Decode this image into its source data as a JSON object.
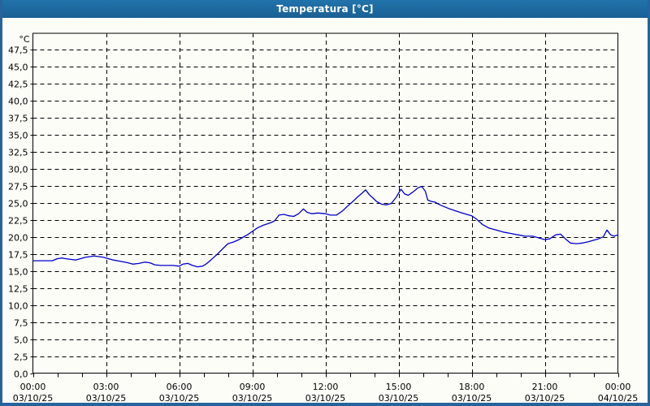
{
  "window": {
    "title": "Temperatura [°C]"
  },
  "colors": {
    "titlebar_bg": "#1d6ca6",
    "titlebar_text": "#ffffff",
    "frame_border": "#28639b",
    "content_bg": "#fdfdf8",
    "plot_border": "#000000",
    "gridline": "#000000",
    "axis_text": "#000000",
    "series_line": "#0000c8"
  },
  "chart_data": {
    "type": "line",
    "title": "Temperatura [°C]",
    "y_unit": "°C",
    "y_min": 0,
    "y_max": 47.5,
    "y_tick_step": 2.5,
    "y_tick_labels": [
      "0,0",
      "2,5",
      "5,0",
      "7,5",
      "10,0",
      "12,5",
      "15,0",
      "17,5",
      "20,0",
      "22,5",
      "25,0",
      "27,5",
      "30,0",
      "32,5",
      "35,0",
      "37,5",
      "40,0",
      "42,5",
      "45,0",
      "47,5"
    ],
    "x_hours_min": 0,
    "x_hours_max": 24,
    "x_minor_tick_every_hours": 1,
    "x_ticks": [
      {
        "hour": 0,
        "time": "00:00",
        "date": "03/10/25"
      },
      {
        "hour": 3,
        "time": "03:00",
        "date": "03/10/25"
      },
      {
        "hour": 6,
        "time": "06:00",
        "date": "03/10/25"
      },
      {
        "hour": 9,
        "time": "09:00",
        "date": "03/10/25"
      },
      {
        "hour": 12,
        "time": "12:00",
        "date": "03/10/25"
      },
      {
        "hour": 15,
        "time": "15:00",
        "date": "03/10/25"
      },
      {
        "hour": 18,
        "time": "18:00",
        "date": "03/10/25"
      },
      {
        "hour": 21,
        "time": "21:00",
        "date": "03/10/25"
      },
      {
        "hour": 24,
        "time": "00:00",
        "date": "04/10/25"
      }
    ],
    "grid": "dashed black; horizontal every 2.5 °C, vertical every 3 h",
    "legend": "none",
    "series": [
      {
        "name": "Temperatura",
        "color": "#0000c8",
        "points_hour_degC": [
          [
            0,
            16.5
          ],
          [
            0.4,
            16.5
          ],
          [
            0.8,
            16.5
          ],
          [
            1,
            16.8
          ],
          [
            1.2,
            16.9
          ],
          [
            1.35,
            16.8
          ],
          [
            1.55,
            16.7
          ],
          [
            1.75,
            16.6
          ],
          [
            1.95,
            16.8
          ],
          [
            2.15,
            17.0
          ],
          [
            2.35,
            17.1
          ],
          [
            2.5,
            17.2
          ],
          [
            2.7,
            17.1
          ],
          [
            2.9,
            17.0
          ],
          [
            3.1,
            16.8
          ],
          [
            3.3,
            16.6
          ],
          [
            3.6,
            16.4
          ],
          [
            3.9,
            16.2
          ],
          [
            4.1,
            16.0
          ],
          [
            4.35,
            16.1
          ],
          [
            4.6,
            16.3
          ],
          [
            4.8,
            16.2
          ],
          [
            5,
            15.9
          ],
          [
            5.25,
            15.8
          ],
          [
            5.5,
            15.8
          ],
          [
            5.75,
            15.8
          ],
          [
            6,
            15.7
          ],
          [
            6.15,
            16.0
          ],
          [
            6.35,
            16.1
          ],
          [
            6.55,
            15.8
          ],
          [
            6.75,
            15.6
          ],
          [
            6.95,
            15.7
          ],
          [
            7.1,
            16.0
          ],
          [
            7.3,
            16.6
          ],
          [
            7.55,
            17.4
          ],
          [
            7.8,
            18.3
          ],
          [
            8,
            19.0
          ],
          [
            8.2,
            19.2
          ],
          [
            8.4,
            19.5
          ],
          [
            8.6,
            19.9
          ],
          [
            8.8,
            20.3
          ],
          [
            9,
            20.8
          ],
          [
            9.2,
            21.3
          ],
          [
            9.45,
            21.7
          ],
          [
            9.7,
            22.0
          ],
          [
            9.9,
            22.3
          ],
          [
            10.1,
            23.2
          ],
          [
            10.3,
            23.3
          ],
          [
            10.5,
            23.1
          ],
          [
            10.7,
            23.0
          ],
          [
            10.9,
            23.4
          ],
          [
            11.1,
            24.1
          ],
          [
            11.25,
            23.6
          ],
          [
            11.45,
            23.4
          ],
          [
            11.7,
            23.5
          ],
          [
            12,
            23.4
          ],
          [
            12.2,
            23.2
          ],
          [
            12.45,
            23.2
          ],
          [
            12.7,
            23.8
          ],
          [
            12.9,
            24.5
          ],
          [
            13.1,
            25.1
          ],
          [
            13.3,
            25.8
          ],
          [
            13.5,
            26.4
          ],
          [
            13.65,
            26.9
          ],
          [
            13.8,
            26.2
          ],
          [
            13.95,
            25.7
          ],
          [
            14.1,
            25.2
          ],
          [
            14.3,
            24.8
          ],
          [
            14.5,
            24.7
          ],
          [
            14.7,
            24.9
          ],
          [
            14.9,
            25.8
          ],
          [
            15.1,
            27.0
          ],
          [
            15.25,
            26.3
          ],
          [
            15.4,
            26.1
          ],
          [
            15.6,
            26.6
          ],
          [
            15.8,
            27.2
          ],
          [
            15.95,
            27.4
          ],
          [
            16.1,
            26.7
          ],
          [
            16.2,
            25.4
          ],
          [
            16.35,
            25.2
          ],
          [
            16.5,
            25.1
          ],
          [
            16.7,
            24.7
          ],
          [
            16.9,
            24.4
          ],
          [
            17.1,
            24.1
          ],
          [
            17.35,
            23.8
          ],
          [
            17.6,
            23.5
          ],
          [
            17.8,
            23.3
          ],
          [
            18,
            23.1
          ],
          [
            18.2,
            22.6
          ],
          [
            18.45,
            21.8
          ],
          [
            18.7,
            21.3
          ],
          [
            19,
            21.0
          ],
          [
            19.3,
            20.7
          ],
          [
            19.6,
            20.5
          ],
          [
            19.9,
            20.3
          ],
          [
            20.2,
            20.1
          ],
          [
            20.5,
            20.1
          ],
          [
            20.8,
            19.8
          ],
          [
            21,
            19.6
          ],
          [
            21.2,
            19.7
          ],
          [
            21.45,
            20.3
          ],
          [
            21.65,
            20.4
          ],
          [
            21.85,
            19.7
          ],
          [
            22.05,
            19.1
          ],
          [
            22.3,
            19.0
          ],
          [
            22.55,
            19.1
          ],
          [
            22.8,
            19.3
          ],
          [
            23,
            19.5
          ],
          [
            23.2,
            19.7
          ],
          [
            23.4,
            20.0
          ],
          [
            23.55,
            21.0
          ],
          [
            23.7,
            20.3
          ],
          [
            23.85,
            20.1
          ],
          [
            24,
            20.3
          ]
        ]
      }
    ]
  }
}
